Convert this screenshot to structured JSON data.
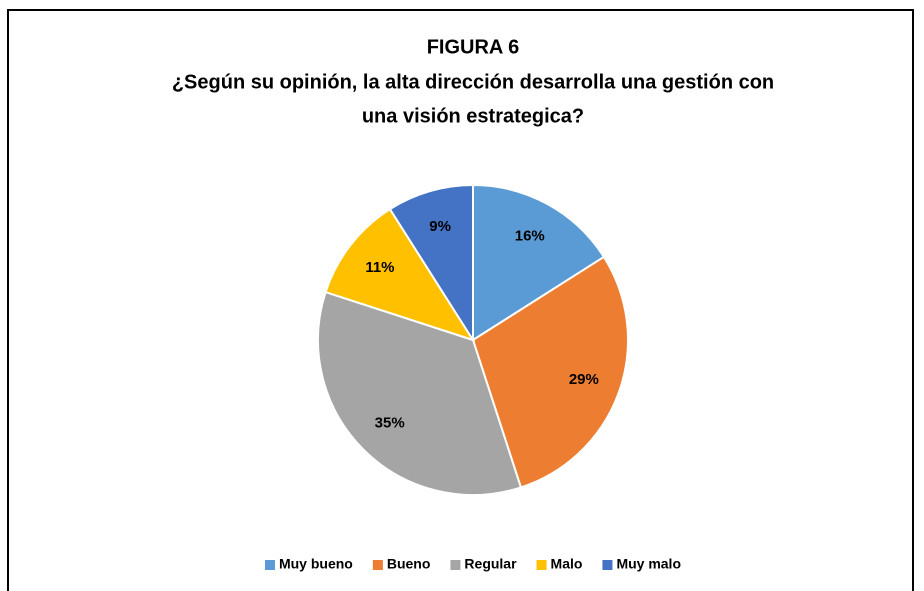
{
  "chart_data": {
    "type": "pie",
    "title": [
      "FIGURA 6",
      "¿Según su opinión, la alta dirección desarrolla una gestión con",
      "una visión estrategica?"
    ],
    "categories": [
      "Muy bueno",
      "Bueno",
      "Regular",
      "Malo",
      "Muy malo"
    ],
    "values": [
      16,
      29,
      35,
      11,
      9
    ],
    "value_labels": [
      "16%",
      "29%",
      "35%",
      "11%",
      "9%"
    ],
    "colors": [
      "#5b9bd5",
      "#ed7d31",
      "#a5a5a5",
      "#ffc000",
      "#4472c4"
    ],
    "legend": "bottom"
  }
}
